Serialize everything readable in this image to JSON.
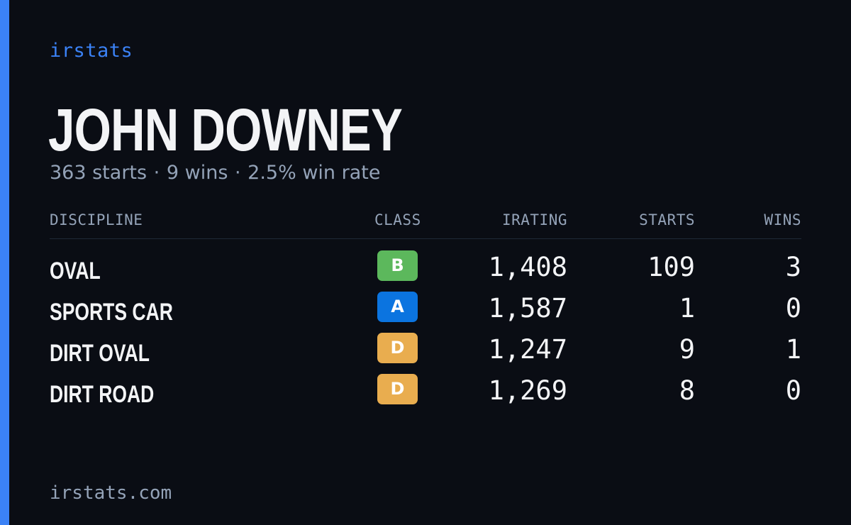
{
  "brand": "irstats",
  "driver": {
    "name": "JOHN DOWNEY",
    "summary": {
      "starts": "363 starts",
      "wins": "9 wins",
      "win_rate": "2.5% win rate",
      "separator": "·"
    }
  },
  "table": {
    "headers": {
      "discipline": "DISCIPLINE",
      "class": "CLASS",
      "irating": "IRATING",
      "starts": "STARTS",
      "wins": "WINS"
    },
    "rows": [
      {
        "discipline": "OVAL",
        "class": "B",
        "class_color": "#5cb85c",
        "irating": "1,408",
        "starts": "109",
        "wins": "3"
      },
      {
        "discipline": "SPORTS CAR",
        "class": "A",
        "class_color": "#0b74e0",
        "irating": "1,587",
        "starts": "1",
        "wins": "0"
      },
      {
        "discipline": "DIRT OVAL",
        "class": "D",
        "class_color": "#e9ad4f",
        "irating": "1,247",
        "starts": "9",
        "wins": "1"
      },
      {
        "discipline": "DIRT ROAD",
        "class": "D",
        "class_color": "#e9ad4f",
        "irating": "1,269",
        "starts": "8",
        "wins": "0"
      }
    ]
  },
  "footer": "irstats.com",
  "colors": {
    "background": "#0a0d14",
    "accent": "#3b82f6",
    "text_primary": "#f3f4f6",
    "text_muted": "#94a3b8"
  }
}
